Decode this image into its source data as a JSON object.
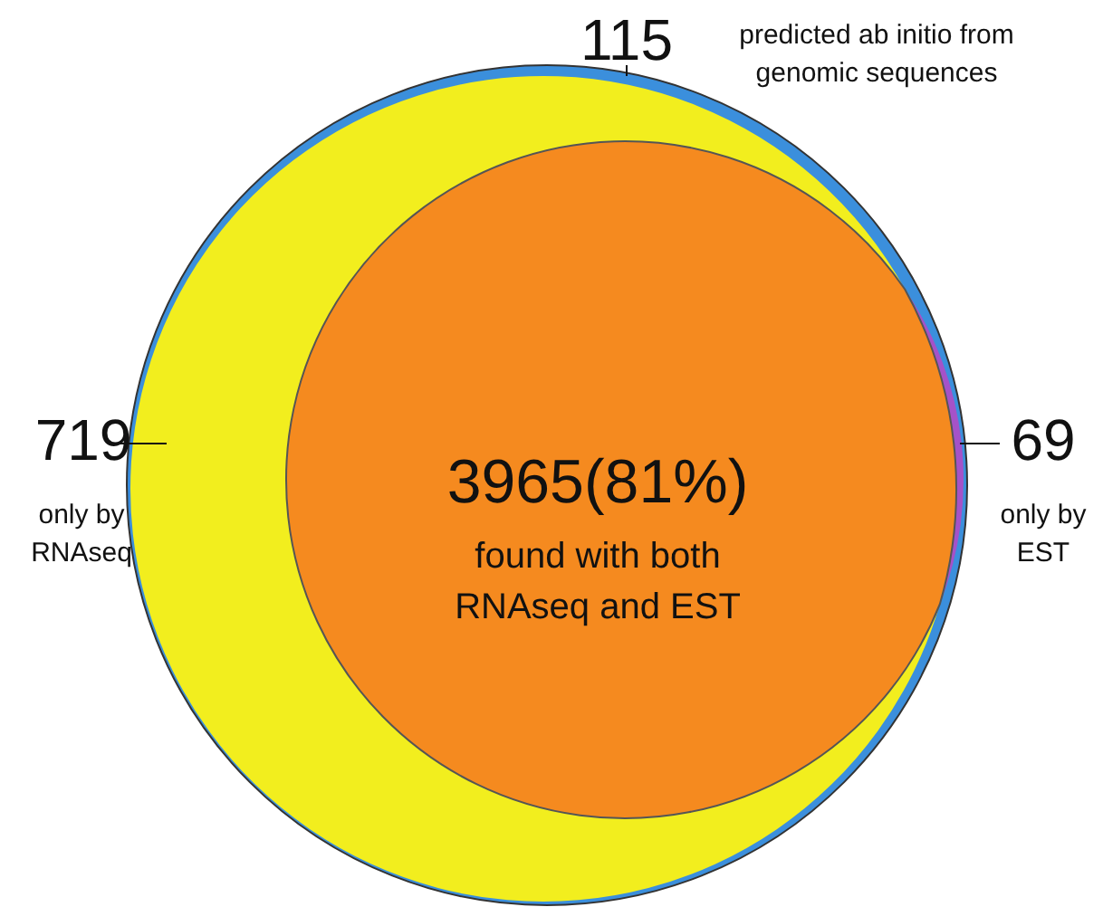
{
  "chart_data": {
    "type": "other",
    "categories": [
      "found with both RNAseq and EST",
      "only by RNAseq",
      "only by EST",
      "predicted ab initio from genomic sequences"
    ],
    "values": [
      3965,
      719,
      69,
      115
    ],
    "value_labels": [
      "3965(81%)",
      "719",
      "69",
      "115"
    ],
    "colors": [
      "#f58a1f",
      "#f2ee1e",
      "#a552c8",
      "#3b8fdc"
    ]
  }
}
